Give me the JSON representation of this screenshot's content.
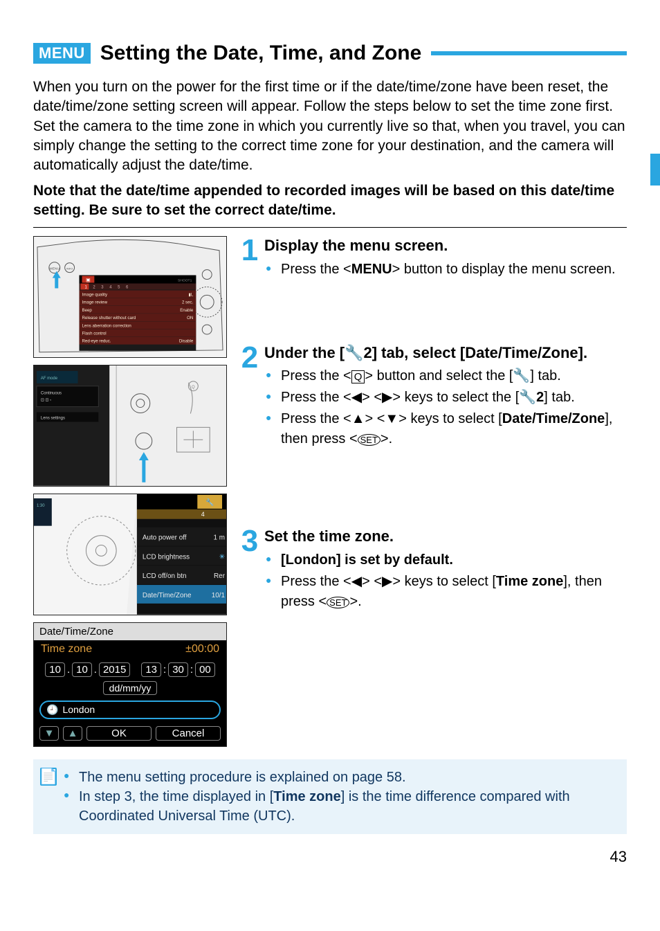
{
  "colors": {
    "accent": "#2aa6e0",
    "note_bg": "#e8f3fa",
    "note_text": "#10365f",
    "page_bg": "#ffffff",
    "text": "#000000",
    "fig_orange": "#e0a040",
    "fig_menu_red": "#c03020",
    "fig_menu_bg": "#2a2a2a",
    "fig_highlight": "#1e6fa0"
  },
  "heading": {
    "badge": "MENU",
    "title": "Setting the Date, Time, and Zone"
  },
  "intro": "When you turn on the power for the first time or if the date/time/zone have been reset, the date/time/zone setting screen will appear. Follow the steps below to set the time zone first. Set the camera to the time zone in which you currently live so that, when you travel, you can simply change the setting to the correct time zone for your destination, and the camera will automatically adjust the date/time.",
  "intro_note": "Note that the date/time appended to recorded images will be based on this date/time setting. Be sure to set the correct date/time.",
  "steps": [
    {
      "num": "1",
      "title": "Display the menu screen.",
      "items": [
        {
          "html": "Press the &lt;<b>MENU</b>&gt; button to display the menu screen."
        }
      ]
    },
    {
      "num": "2",
      "title_html": "Under the [🔧2] tab, select [Date/Time/Zone].",
      "items": [
        {
          "html": "Press the &lt;<span style='border:1px solid #000;padding:0 3px;font-size:15px'>Q</span>&gt; button and select the [🔧] tab."
        },
        {
          "html": "Press the &lt;◀&gt; &lt;▶&gt; keys to select the [🔧<b>2</b>] tab."
        },
        {
          "html": "Press the &lt;▲&gt; &lt;▼&gt; keys to select [<b>Date/Time/Zone</b>], then press &lt;<span style='border:1px solid #000;border-radius:50%;padding:0 3px;font-size:13px'>SET</span>&gt;."
        }
      ]
    },
    {
      "num": "3",
      "title": "Set the time zone.",
      "items": [
        {
          "html": "<b>[London] is set by default.</b>"
        },
        {
          "html": "Press the &lt;◀&gt; &lt;▶&gt; keys to select [<b>Time zone</b>], then press &lt;<span style='border:1px solid #000;border-radius:50%;padding:0 3px;font-size:13px'>SET</span>&gt;."
        }
      ]
    }
  ],
  "step_spacing": {
    "after1": 90,
    "after2": 110
  },
  "fig1": {
    "menu_items": [
      {
        "label": "Image quality",
        "value": "▮L"
      },
      {
        "label": "Image review",
        "value": "2 sec."
      },
      {
        "label": "Beep",
        "value": "Enable"
      },
      {
        "label": "Release shutter without card",
        "value": "ON"
      },
      {
        "label": "Lens aberration correction",
        "value": ""
      },
      {
        "label": "Flash control",
        "value": ""
      },
      {
        "label": "Red-eye reduc.",
        "value": "Disable"
      }
    ],
    "tabs": [
      "1",
      "2",
      "3",
      "4",
      "5",
      "6"
    ],
    "tabs_right": "SHOOT1"
  },
  "fig3": {
    "top_tab": "4",
    "items": [
      {
        "label": "Auto power off",
        "value": "1 m"
      },
      {
        "label": "LCD brightness",
        "value": "✳"
      },
      {
        "label": "LCD off/on btn",
        "value": "Rer"
      },
      {
        "label": "Date/Time/Zone",
        "value": "10/1",
        "selected": true
      }
    ]
  },
  "fig4": {
    "title": "Date/Time/Zone",
    "subtitle": "Time zone",
    "offset": "±00:00",
    "date": [
      "10",
      "10",
      "2015"
    ],
    "time": [
      "13",
      "30",
      "00"
    ],
    "format": "dd/mm/yy",
    "tz_label": "London",
    "buttons": {
      "down": "▼",
      "up": "▲",
      "ok": "OK",
      "cancel": "Cancel"
    }
  },
  "notes": [
    {
      "html": "The menu setting procedure is explained on page 58."
    },
    {
      "html": "In step 3, the time displayed in [<b>Time zone</b>] is the time difference compared with Coordinated Universal Time (UTC)."
    }
  ],
  "page_number": "43"
}
